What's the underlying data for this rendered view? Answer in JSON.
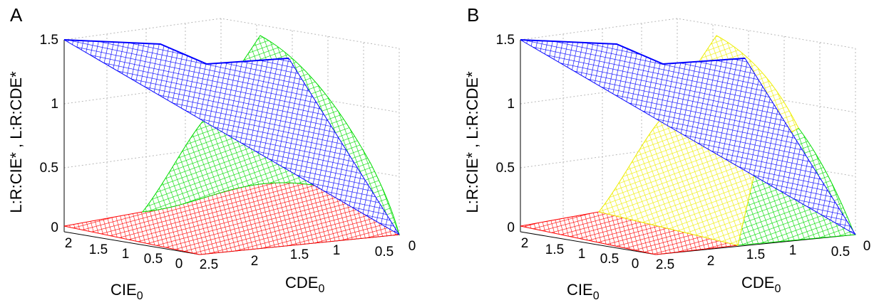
{
  "chart_data": [
    {
      "type": "surface",
      "panel_label": "A",
      "zlabel": "L:R:CIE* , L:R:CDE*",
      "xlabel_base": "CIE",
      "xlabel_sub": "0",
      "ylabel_base": "CDE",
      "ylabel_sub": "0",
      "zlim": [
        0,
        1.5
      ],
      "z_ticks": [
        "0",
        "0.5",
        "1",
        "1.5"
      ],
      "x_ticks": [
        "0",
        "0.5",
        "1",
        "1.5",
        "2"
      ],
      "y_ticks": [
        "0",
        "0.5",
        "1",
        "1.5",
        "2",
        "2.5"
      ],
      "grid": true,
      "surfaces": [
        {
          "color": "#0000ff",
          "description_value_plateau": 1.47
        },
        {
          "color": "#00dd00"
        },
        {
          "color": "#ff0000"
        }
      ]
    },
    {
      "type": "surface",
      "panel_label": "B",
      "zlabel": "L:R:CIE* , L:R:CDE*",
      "xlabel_base": "CIE",
      "xlabel_sub": "0",
      "ylabel_base": "CDE",
      "ylabel_sub": "0",
      "zlim": [
        0,
        1.5
      ],
      "z_ticks": [
        "0",
        "0.5",
        "1",
        "1.5"
      ],
      "x_ticks": [
        "0",
        "0.5",
        "1",
        "1.5",
        "2"
      ],
      "y_ticks": [
        "0",
        "0.5",
        "1",
        "1.5",
        "2",
        "2.5"
      ],
      "grid": true,
      "surfaces": [
        {
          "color": "#0000ff"
        },
        {
          "color": "#ffff00"
        },
        {
          "color": "#00dd00"
        },
        {
          "color": "#ff0000"
        }
      ]
    }
  ]
}
